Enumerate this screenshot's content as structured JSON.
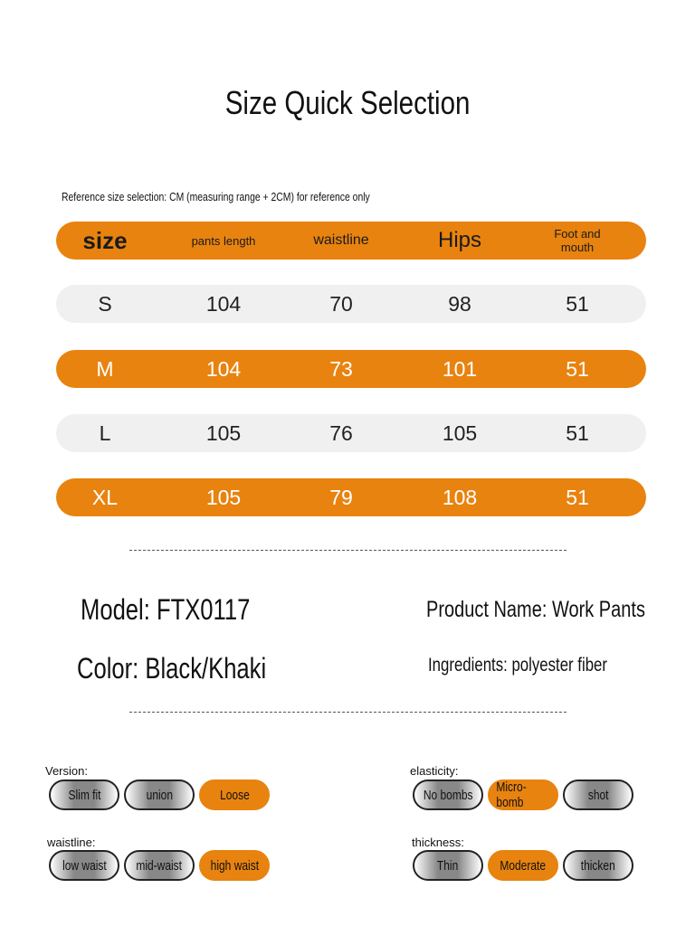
{
  "title": "Size Quick Selection",
  "note": "Reference size selection: CM (measuring range + 2CM) for reference only",
  "table": {
    "headers": [
      "size",
      "pants length",
      "waistline",
      "Hips",
      "Foot and mouth"
    ],
    "rows": [
      [
        "S",
        "104",
        "70",
        "98",
        "51"
      ],
      [
        "M",
        "104",
        "73",
        "101",
        "51"
      ],
      [
        "L",
        "105",
        "76",
        "105",
        "51"
      ],
      [
        "XL",
        "105",
        "79",
        "108",
        "51"
      ]
    ]
  },
  "info": {
    "model": "Model: FTX0117",
    "product_name": "Product Name: Work Pants",
    "color": "Color: Black/Khaki",
    "ingredients": "Ingredients: polyester fiber"
  },
  "options": {
    "version": {
      "label": "Version:",
      "items": [
        "Slim fit",
        "union",
        "Loose"
      ],
      "selected": "Loose"
    },
    "waistline": {
      "label": "waistline:",
      "items": [
        "low waist",
        "mid-waist",
        "high waist"
      ],
      "selected": "high waist"
    },
    "elasticity": {
      "label": "elasticity:",
      "items": [
        "No bombs",
        "Micro-bomb",
        "shot"
      ],
      "selected": "Micro-bomb"
    },
    "thickness": {
      "label": "thickness:",
      "items": [
        "Thin",
        "Moderate",
        "thicken"
      ],
      "selected": "Moderate"
    }
  },
  "colors": {
    "accent": "#e8830f",
    "row_gray": "#f0f0f0"
  }
}
